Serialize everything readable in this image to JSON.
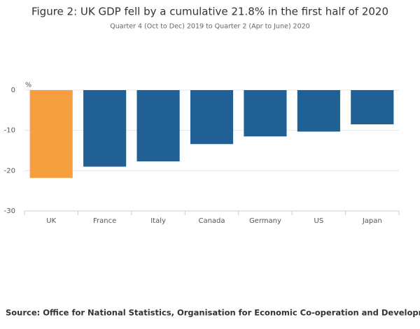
{
  "chart_data": {
    "type": "bar",
    "title": "Figure 2: UK GDP fell by a cumulative 21.8% in the first half of 2020",
    "subtitle": "Quarter 4 (Oct to Dec) 2019 to Quarter 2 (Apr to June) 2020",
    "y_unit": "%",
    "categories": [
      "UK",
      "France",
      "Italy",
      "Canada",
      "Germany",
      "US",
      "Japan"
    ],
    "values": [
      -21.8,
      -19.0,
      -17.7,
      -13.4,
      -11.5,
      -10.3,
      -8.5
    ],
    "colors": [
      "#f59f3e",
      "#206095",
      "#206095",
      "#206095",
      "#206095",
      "#206095",
      "#206095"
    ],
    "ylim": [
      -30,
      0
    ],
    "yticks": [
      0,
      -10,
      -20,
      -30
    ],
    "grid": true,
    "source": "Source: Office for National Statistics, Organisation for Economic Co-operation and Development"
  }
}
